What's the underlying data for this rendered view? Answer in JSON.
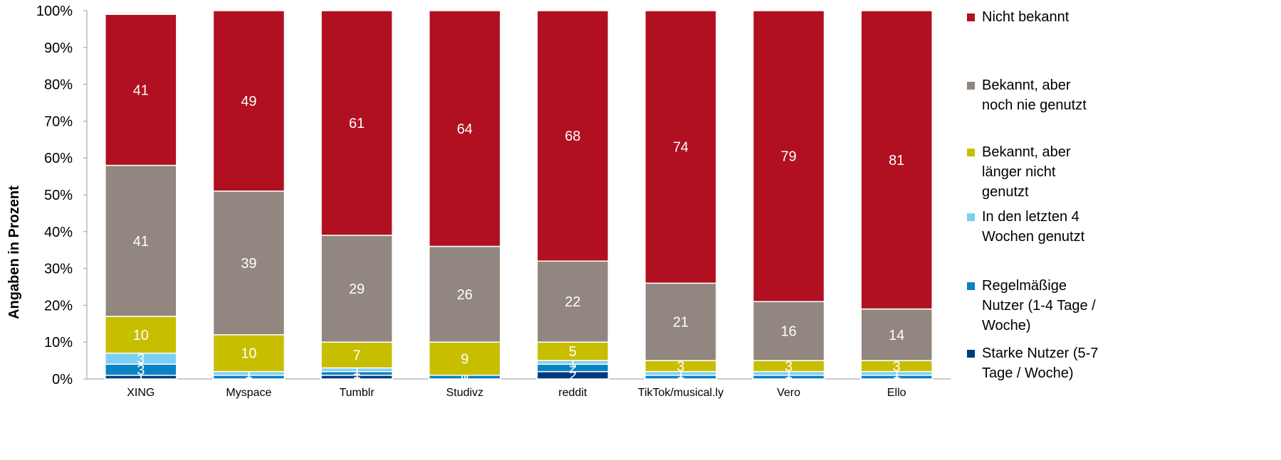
{
  "chart_data": {
    "type": "stacked_bar",
    "y_label": "Angaben in Prozent",
    "categories": [
      "XING",
      "Myspace",
      "Tumblr",
      "Studivz",
      "reddit",
      "TikTok/musical.ly",
      "Vero",
      "Ello"
    ],
    "series": [
      {
        "name": "Starke Nutzer (5-7 Tage / Woche)",
        "color": "#003c7d",
        "values": [
          1,
          0,
          1,
          0,
          2,
          0,
          0,
          0
        ]
      },
      {
        "name": "Regelmäßige Nutzer (1-4 Tage / Woche)",
        "color": "#0a82c3",
        "values": [
          3,
          1,
          1,
          1,
          2,
          1,
          1,
          1
        ]
      },
      {
        "name": "In den letzten 4 Wochen genutzt",
        "color": "#7ccff0",
        "values": [
          3,
          1,
          1,
          0,
          1,
          1,
          1,
          1
        ]
      },
      {
        "name": "Bekannt, aber länger nicht genutzt",
        "color": "#c8be00",
        "values": [
          10,
          10,
          7,
          9,
          5,
          3,
          3,
          3
        ]
      },
      {
        "name": "Bekannt, aber noch nie genutzt",
        "color": "#928680",
        "values": [
          41,
          39,
          29,
          26,
          22,
          21,
          16,
          14
        ]
      },
      {
        "name": "Nicht bekannt",
        "color": "#b01020",
        "values": [
          41,
          49,
          61,
          64,
          68,
          74,
          79,
          81
        ]
      }
    ],
    "ylim": [
      0,
      100
    ],
    "yticks": [
      {
        "value": 0,
        "label": "0%"
      },
      {
        "value": 10,
        "label": "10%"
      },
      {
        "value": 20,
        "label": "20%"
      },
      {
        "value": 30,
        "label": "30%"
      },
      {
        "value": 40,
        "label": "40%"
      },
      {
        "value": 50,
        "label": "50%"
      },
      {
        "value": 60,
        "label": "60%"
      },
      {
        "value": 70,
        "label": "70%"
      },
      {
        "value": 80,
        "label": "80%"
      },
      {
        "value": 90,
        "label": "90%"
      },
      {
        "value": 100,
        "label": "100%"
      }
    ],
    "legend": "right"
  }
}
